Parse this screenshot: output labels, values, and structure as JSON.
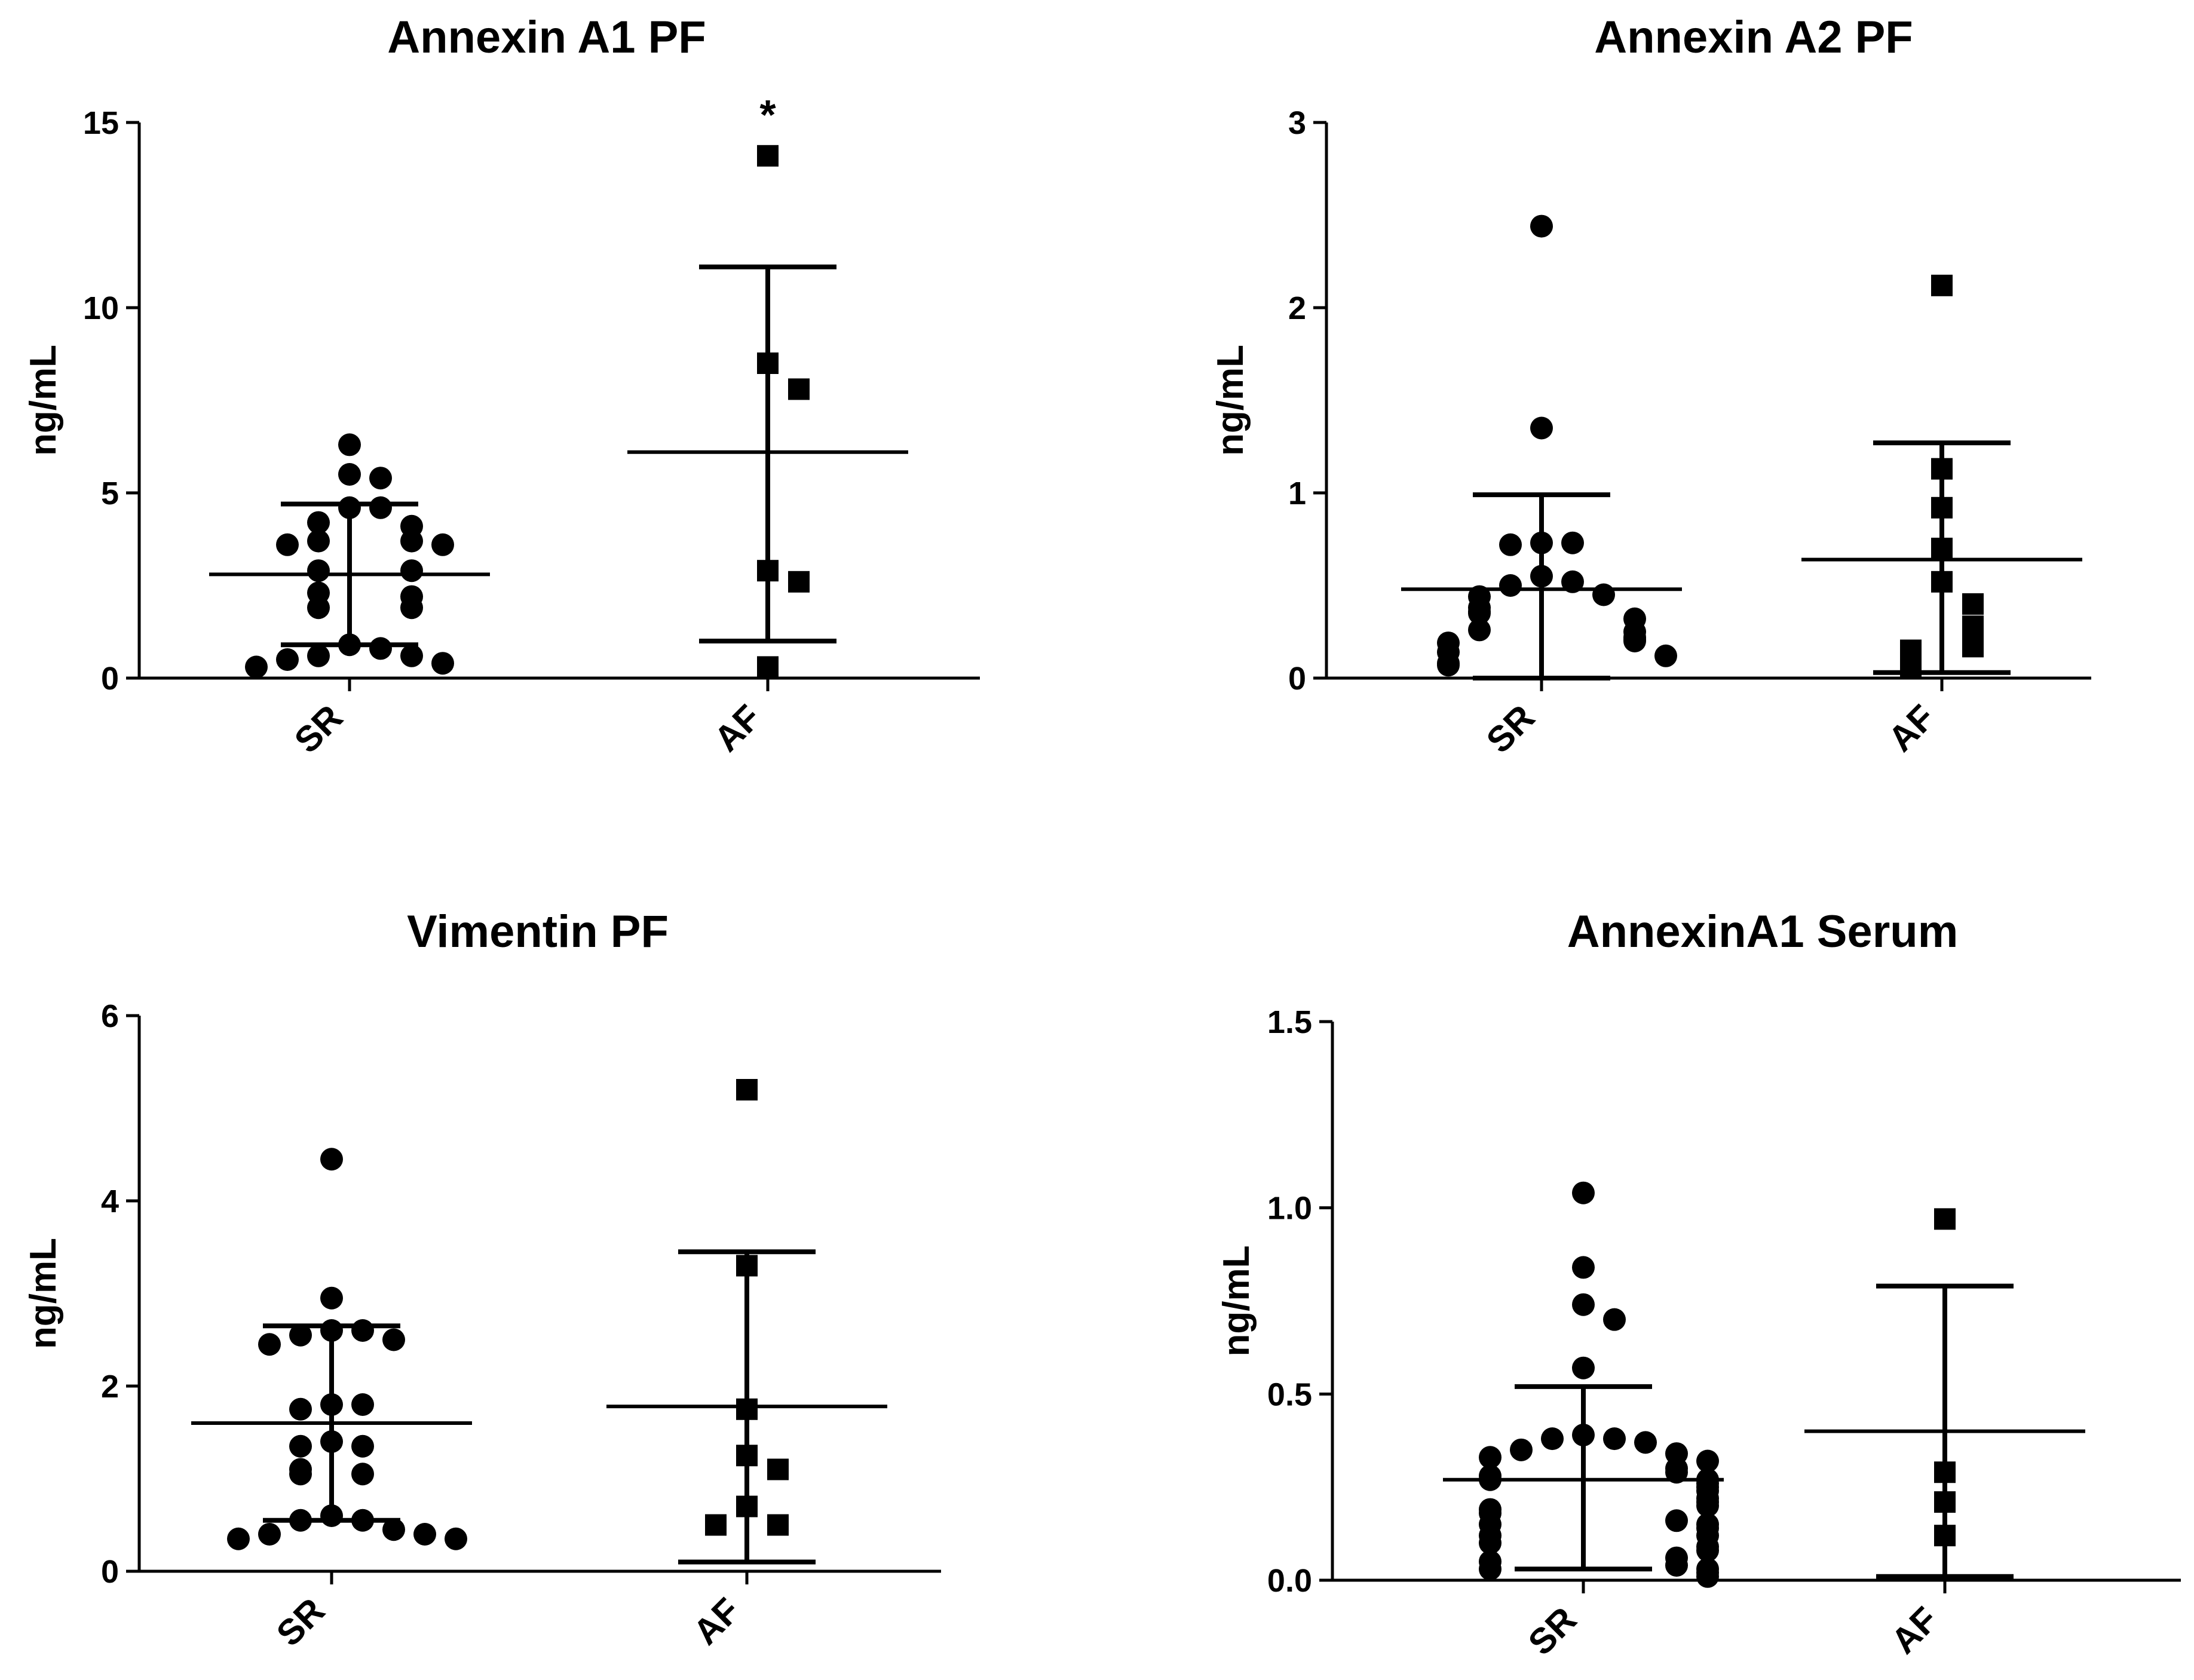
{
  "chart_data": [
    {
      "type": "scatter",
      "title": "Annexin A1 PF",
      "ylabel": "ng/mL",
      "xlabel": "",
      "ylim": [
        0,
        15
      ],
      "yticks": [
        0,
        5,
        10,
        15
      ],
      "ytick_labels": [
        "0",
        "5",
        "10",
        "15"
      ],
      "categories": [
        "SR",
        "AF"
      ],
      "series": [
        {
          "name": "SR",
          "marker": "circle",
          "values": [
            6.3,
            5.5,
            5.4,
            4.6,
            4.6,
            4.2,
            4.1,
            3.7,
            3.7,
            3.6,
            3.6,
            2.9,
            2.9,
            2.3,
            2.2,
            1.9,
            1.9,
            0.9,
            0.8,
            0.6,
            0.6,
            0.5,
            0.4,
            0.3
          ],
          "mean": 2.8,
          "sd_low": 0.9,
          "sd_high": 4.7
        },
        {
          "name": "AF",
          "marker": "square",
          "values": [
            14.1,
            8.5,
            7.8,
            2.9,
            2.6,
            0.3
          ],
          "mean": 6.1,
          "sd_low": 1.0,
          "sd_high": 11.1,
          "annotation": "*"
        }
      ]
    },
    {
      "type": "scatter",
      "title": "Annexin A2 PF",
      "ylabel": "ng/mL",
      "xlabel": "",
      "ylim": [
        0,
        3
      ],
      "yticks": [
        0,
        1,
        2,
        3
      ],
      "ytick_labels": [
        "0",
        "1",
        "2",
        "3"
      ],
      "categories": [
        "SR",
        "AF"
      ],
      "series": [
        {
          "name": "SR",
          "marker": "circle",
          "values": [
            2.44,
            1.35,
            0.73,
            0.73,
            0.72,
            0.55,
            0.52,
            0.5,
            0.45,
            0.44,
            0.38,
            0.36,
            0.35,
            0.32,
            0.26,
            0.25,
            0.22,
            0.21,
            0.2,
            0.19,
            0.14,
            0.12,
            0.08,
            0.07
          ],
          "mean": 0.48,
          "sd_low": 0.0,
          "sd_high": 0.99
        },
        {
          "name": "AF",
          "marker": "square",
          "values": [
            2.12,
            1.13,
            0.92,
            0.7,
            0.52,
            0.4,
            0.28,
            0.17,
            0.15,
            0.05
          ],
          "mean": 0.64,
          "sd_low": 0.03,
          "sd_high": 1.27
        }
      ]
    },
    {
      "type": "scatter",
      "title": "Vimentin PF",
      "ylabel": "ng/mL",
      "xlabel": "",
      "ylim": [
        0,
        6
      ],
      "yticks": [
        0,
        2,
        4,
        6
      ],
      "ytick_labels": [
        "0",
        "2",
        "4",
        "6"
      ],
      "categories": [
        "SR",
        "AF"
      ],
      "series": [
        {
          "name": "SR",
          "marker": "circle",
          "values": [
            4.45,
            2.95,
            2.6,
            2.6,
            2.55,
            2.5,
            2.45,
            1.8,
            1.8,
            1.75,
            1.4,
            1.35,
            1.35,
            1.1,
            1.05,
            1.05,
            0.6,
            0.55,
            0.55,
            0.45,
            0.4,
            0.4,
            0.35,
            0.35
          ],
          "mean": 1.6,
          "sd_low": 0.55,
          "sd_high": 2.65
        },
        {
          "name": "AF",
          "marker": "square",
          "values": [
            5.2,
            3.3,
            1.75,
            1.25,
            1.1,
            0.7,
            0.5,
            0.5
          ],
          "mean": 1.78,
          "sd_low": 0.1,
          "sd_high": 3.45
        }
      ]
    },
    {
      "type": "scatter",
      "title": "AnnexinA1 Serum",
      "ylabel": "ng/mL",
      "xlabel": "",
      "ylim": [
        0,
        1.5
      ],
      "yticks": [
        0,
        0.5,
        1.0,
        1.5
      ],
      "ytick_labels": [
        "0.0",
        "0.5",
        "1.0",
        "1.5"
      ],
      "categories": [
        "SR",
        "AF"
      ],
      "series": [
        {
          "name": "SR",
          "marker": "circle",
          "values": [
            1.04,
            0.84,
            0.74,
            0.7,
            0.57,
            0.39,
            0.38,
            0.38,
            0.37,
            0.35,
            0.34,
            0.33,
            0.32,
            0.3,
            0.29,
            0.28,
            0.27,
            0.27,
            0.26,
            0.25,
            0.24,
            0.22,
            0.21,
            0.2,
            0.19,
            0.18,
            0.16,
            0.15,
            0.15,
            0.14,
            0.12,
            0.12,
            0.1,
            0.09,
            0.08,
            0.06,
            0.05,
            0.04,
            0.03,
            0.03,
            0.02,
            0.01
          ],
          "mean": 0.27,
          "sd_low": 0.03,
          "sd_high": 0.52
        },
        {
          "name": "AF",
          "marker": "square",
          "values": [
            0.97,
            0.29,
            0.21,
            0.12
          ],
          "mean": 0.4,
          "sd_low": 0.01,
          "sd_high": 0.79
        }
      ]
    }
  ]
}
